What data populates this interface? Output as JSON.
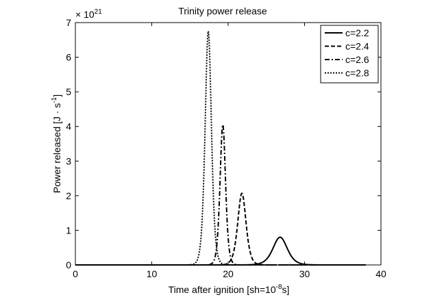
{
  "chart_data": {
    "type": "line",
    "title": "Trinity power release",
    "xlabel_main": "Time after ignition [sh=10",
    "xlabel_sup": "-8",
    "xlabel_end": "s]",
    "ylabel_main": "Power released [J · s",
    "ylabel_sup": "-1",
    "ylabel_end": "]",
    "y_multiplier_base": "× 10",
    "y_multiplier_exp": "21",
    "xlim": [
      0,
      40
    ],
    "ylim": [
      0,
      7
    ],
    "xticks": [
      0,
      10,
      20,
      30,
      40
    ],
    "yticks": [
      0,
      1,
      2,
      3,
      4,
      5,
      6,
      7
    ],
    "legend_position": "top-right",
    "grid": false,
    "series": [
      {
        "name": "c=2.2",
        "style": "solid",
        "peak_x": 26.8,
        "peak_y": 0.8,
        "width": 1.25
      },
      {
        "name": "c=2.4",
        "style": "dashed",
        "peak_x": 21.8,
        "peak_y": 2.07,
        "width": 0.72
      },
      {
        "name": "c=2.6",
        "style": "dashdot",
        "peak_x": 19.3,
        "peak_y": 4.05,
        "width": 0.48
      },
      {
        "name": "c=2.8",
        "style": "dotted",
        "peak_x": 17.4,
        "peak_y": 6.75,
        "width": 0.55
      }
    ],
    "x_end": 38
  }
}
